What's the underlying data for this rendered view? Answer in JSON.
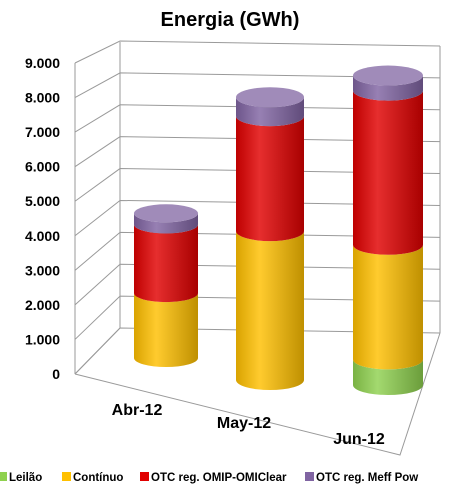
{
  "chart_data": {
    "type": "bar",
    "stacked": true,
    "three_d": true,
    "title": "Energia (GWh)",
    "categories": [
      "Abr-12",
      "May-12",
      "Jun-12"
    ],
    "series": [
      {
        "name": "Leilão",
        "color": "#8fd14f",
        "values": [
          0,
          0,
          680
        ]
      },
      {
        "name": "Contínuo",
        "color": "#ffc000",
        "values": [
          1750,
          3950,
          3050
        ]
      },
      {
        "name": "OTC reg. OMIP-OMIClear",
        "color": "#e00000",
        "values": [
          1850,
          3050,
          4100
        ]
      },
      {
        "name": "OTC reg. Meff Pow",
        "color": "#8064a2",
        "values": [
          300,
          500,
          400
        ]
      }
    ],
    "ylim": [
      0,
      9000
    ],
    "yticks": [
      0,
      1000,
      2000,
      3000,
      4000,
      5000,
      6000,
      7000,
      8000,
      9000
    ],
    "ytick_labels": [
      "0",
      "1.000",
      "2.000",
      "3.000",
      "4.000",
      "5.000",
      "6.000",
      "7.000",
      "8.000",
      "9.000"
    ],
    "legend_position": "bottom",
    "grid": true
  }
}
